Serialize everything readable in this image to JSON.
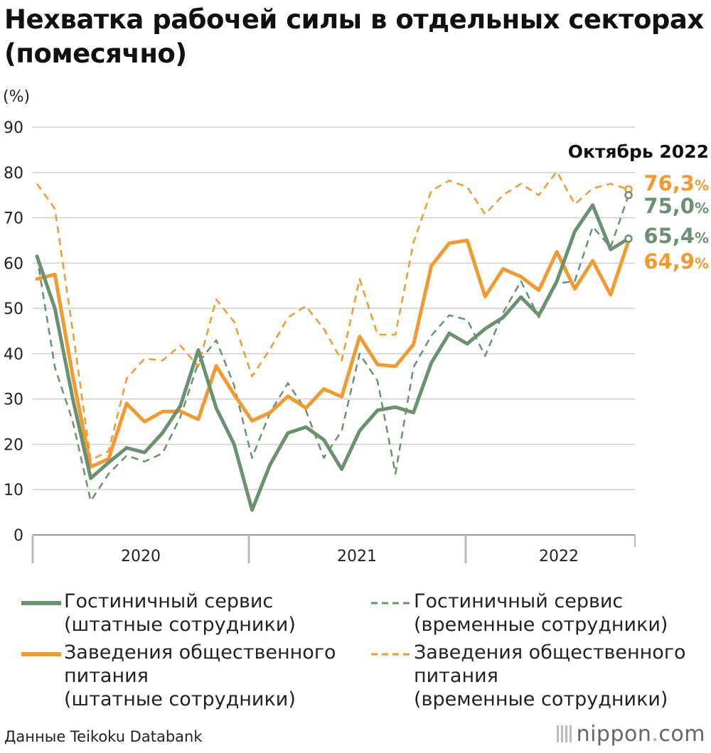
{
  "title": "Нехватка рабочей силы в отдельных секторах (помесячно)",
  "source": "Данные Teikoku Databank",
  "brand": {
    "name": "nippon",
    "dot": ".",
    "tld": "com"
  },
  "colors": {
    "green": "#6b9270",
    "orange": "#f29a2e",
    "grid": "#cfcfcf",
    "axis": "#999999"
  },
  "chart_data": {
    "type": "line",
    "title": "Нехватка рабочей силы в отдельных секторах (помесячно)",
    "ylabel": "(%)",
    "ylim": [
      0,
      90
    ],
    "yticks": [
      0,
      10,
      20,
      30,
      40,
      50,
      60,
      70,
      80,
      90
    ],
    "grid": true,
    "year_labels": [
      "2020",
      "2021",
      "2022"
    ],
    "months": 34,
    "annotation": "Октябрь 2022",
    "end_labels": [
      {
        "text": "76,3",
        "unit": "%",
        "color": "orange"
      },
      {
        "text": "75,0",
        "unit": "%",
        "color": "green"
      },
      {
        "text": "65,4",
        "unit": "%",
        "color": "green"
      },
      {
        "text": "64,9",
        "unit": "%",
        "color": "orange"
      }
    ],
    "series": [
      {
        "name": "Гостиничный сервис\n(штатные сотрудники)",
        "color": "green",
        "dash": false,
        "values": [
          61.5,
          50,
          30,
          12.5,
          16,
          19.2,
          18.2,
          22.5,
          28.5,
          40.8,
          28,
          20,
          5.5,
          15.5,
          22.5,
          23.8,
          21,
          14.5,
          23,
          27.5,
          28.2,
          27,
          38,
          44.5,
          42.2,
          45.5,
          48,
          52.5,
          48.5,
          56,
          67,
          72.8,
          63,
          65.4
        ]
      },
      {
        "name": "Гостиничный сервис\n(временные сотрудники)",
        "color": "green",
        "dash": true,
        "values": [
          61.5,
          37,
          25,
          7.5,
          13.5,
          17.5,
          16.2,
          18,
          26,
          38,
          43,
          33,
          17,
          27,
          33.5,
          27.5,
          17,
          23,
          40,
          34,
          13.5,
          37,
          44,
          48.5,
          47.5,
          39.5,
          49,
          56,
          48,
          55.5,
          56,
          68,
          63.5,
          75.0
        ]
      },
      {
        "name": "Заведения общественного\nпитания\n(штатные сотрудники)",
        "color": "orange",
        "dash": false,
        "values": [
          56.5,
          57.5,
          35,
          15,
          16.8,
          29,
          25,
          27.2,
          27.3,
          25.5,
          37.3,
          31,
          25.2,
          27,
          30.6,
          28,
          32.2,
          30.5,
          43.8,
          37.6,
          37.2,
          42,
          59.4,
          64.4,
          65,
          52.6,
          58.7,
          57,
          54,
          62.5,
          54.3,
          60.5,
          53,
          64.9
        ]
      },
      {
        "name": "Заведения общественного\nпитания\n(временные сотрудники)",
        "color": "orange",
        "dash": true,
        "values": [
          77.5,
          72,
          45,
          16.5,
          18.5,
          34.5,
          38.9,
          38.5,
          41.8,
          37.2,
          52,
          47,
          35,
          41,
          48,
          50.5,
          45.5,
          38.5,
          56.5,
          44.2,
          44.2,
          64.5,
          76,
          78.2,
          76.8,
          70.8,
          75,
          77.5,
          75,
          80.2,
          73,
          76.5,
          77.5,
          76.3
        ]
      }
    ]
  },
  "legend": [
    {
      "label": "Гостиничный сервис\n(штатные сотрудники)"
    },
    {
      "label": "Гостиничный сервис\n(временные сотрудники)"
    },
    {
      "label": "Заведения общественного\nпитания\n(штатные сотрудники)"
    },
    {
      "label": "Заведения общественного\nпитания\n(временные сотрудники)"
    }
  ]
}
